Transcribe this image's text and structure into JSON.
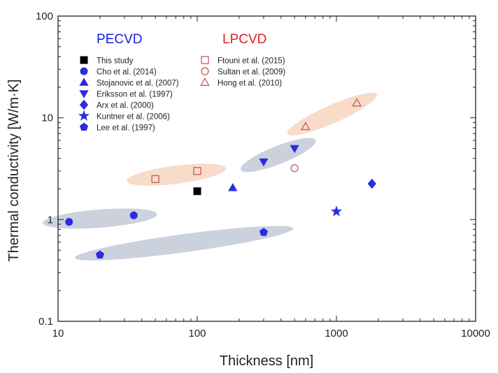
{
  "chart_data": {
    "type": "scatter",
    "xscale": "log",
    "yscale": "log",
    "xlabel": "Thickness [nm]",
    "ylabel": "Thermal conductivity [W/m·K]",
    "xlim": [
      10,
      10000
    ],
    "ylim": [
      0.1,
      100
    ],
    "xticks": [
      {
        "value": 10,
        "label": "10"
      },
      {
        "value": 100,
        "label": "100"
      },
      {
        "value": 1000,
        "label": "1000"
      },
      {
        "value": 10000,
        "label": "10000"
      }
    ],
    "yticks": [
      {
        "value": 0.1,
        "label": "0.1"
      },
      {
        "value": 1,
        "label": "1"
      },
      {
        "value": 10,
        "label": "10"
      },
      {
        "value": 100,
        "label": "100"
      }
    ],
    "groups": [
      {
        "name": "PECVD",
        "color": "#1a1ae6"
      },
      {
        "name": "LPCVD",
        "color": "#e02020"
      }
    ],
    "series": [
      {
        "name": "This study",
        "group": "PECVD",
        "marker": "square",
        "filled": true,
        "color": "#000000",
        "points": [
          [
            100,
            1.9
          ]
        ]
      },
      {
        "name": "Cho et al. (2014)",
        "group": "PECVD",
        "marker": "circle",
        "filled": true,
        "color": "#2b2be0",
        "points": [
          [
            12,
            0.95
          ],
          [
            35,
            1.1
          ]
        ]
      },
      {
        "name": "Stojanovic et al. (2007)",
        "group": "PECVD",
        "marker": "triangle-up",
        "filled": true,
        "color": "#2b2be0",
        "points": [
          [
            180,
            2.05
          ]
        ]
      },
      {
        "name": "Eriksson et al. (1997)",
        "group": "PECVD",
        "marker": "triangle-down",
        "filled": true,
        "color": "#2b2be0",
        "points": [
          [
            300,
            3.7
          ],
          [
            500,
            5.0
          ]
        ]
      },
      {
        "name": "Arx et al. (2000)",
        "group": "PECVD",
        "marker": "diamond",
        "filled": true,
        "color": "#2b2be0",
        "points": [
          [
            1800,
            2.25
          ]
        ]
      },
      {
        "name": "Kuntner et al. (2006)",
        "group": "PECVD",
        "marker": "star",
        "filled": true,
        "color": "#2b2be0",
        "points": [
          [
            1000,
            1.2
          ]
        ]
      },
      {
        "name": "Lee et al. (1997)",
        "group": "PECVD",
        "marker": "pentagon",
        "filled": true,
        "color": "#2b2be0",
        "points": [
          [
            20,
            0.45
          ],
          [
            300,
            0.75
          ]
        ]
      },
      {
        "name": "Ftouni et al. (2015)",
        "group": "LPCVD",
        "marker": "square",
        "filled": false,
        "color": "#c0504d",
        "points": [
          [
            50,
            2.5
          ],
          [
            100,
            3.0
          ]
        ]
      },
      {
        "name": "Sultan et al. (2009)",
        "group": "LPCVD",
        "marker": "circle",
        "filled": false,
        "color": "#c0504d",
        "points": [
          [
            500,
            3.2
          ]
        ]
      },
      {
        "name": "Hong et al. (2010)",
        "group": "LPCVD",
        "marker": "triangle-up",
        "filled": false,
        "color": "#c0504d",
        "points": [
          [
            600,
            8.2
          ],
          [
            1400,
            14.0
          ]
        ]
      }
    ],
    "highlights": [
      {
        "group": "PECVD",
        "color": "#8c9bb5",
        "from": [
          10,
          0.95
        ],
        "to": [
          40,
          1.1
        ]
      },
      {
        "group": "PECVD",
        "color": "#8c9bb5",
        "from": [
          17,
          0.44
        ],
        "to": [
          380,
          0.78
        ]
      },
      {
        "group": "PECVD",
        "color": "#8c9bb5",
        "from": [
          260,
          3.5
        ],
        "to": [
          560,
          5.3
        ]
      },
      {
        "group": "LPCVD",
        "color": "#f2b08a",
        "from": [
          40,
          2.5
        ],
        "to": [
          125,
          3.05
        ]
      },
      {
        "group": "LPCVD",
        "color": "#f2b08a",
        "from": [
          560,
          8.0
        ],
        "to": [
          1550,
          14.8
        ]
      }
    ]
  }
}
